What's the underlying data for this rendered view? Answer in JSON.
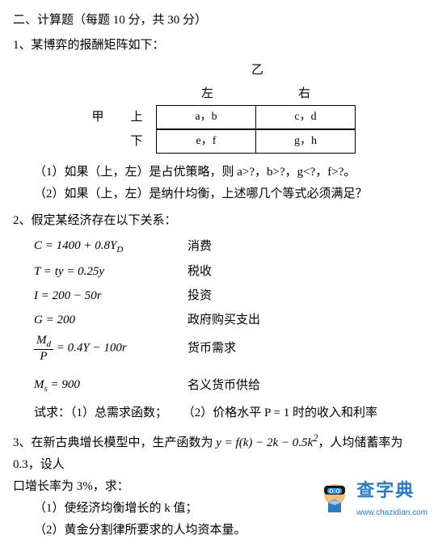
{
  "section_title": "二、计算题（每题 10 分，共 30 分）",
  "q1": {
    "stem": "1、某博弈的报酬矩阵如下：",
    "colplayer": "乙",
    "rowplayer": "甲",
    "col_left": "左",
    "col_right": "右",
    "row_top": "上",
    "row_bottom": "下",
    "cell_tl": "a，b",
    "cell_tr": "c，d",
    "cell_bl": "e，f",
    "cell_br": "g，h",
    "sub1": "（1）如果（上，左）是占优策略，则 a>?，b>?，g<?，f>?。",
    "sub2": "（2）如果（上，左）是纳什均衡，上述哪几个等式必须满足？"
  },
  "q2": {
    "stem": "2、假定某经济存在以下关系：",
    "rows": [
      {
        "eqhtml": "C = 1400 + 0.8Y<span class='sub'>D</span>",
        "label": "消费"
      },
      {
        "eqhtml": "T = ty = 0.25y",
        "label": "税收"
      },
      {
        "eqhtml": "I = 200 − 50r",
        "label": "投资"
      },
      {
        "eqhtml": "G = 200",
        "label": "政府购买支出"
      },
      {
        "eqhtml": "<span class='frac'><span class='num'>M<span class=\"sub\">d</span></span><span class='den'>P</span></span> = 0.4Y − 100r",
        "label": "货币需求"
      },
      {
        "eqhtml": "M<span class='sub'>s</span> = 900",
        "label": "名义货币供给"
      }
    ],
    "ask_prefix": "试求：（1）总需求函数；",
    "ask_part2": "（2）价格水平 P = 1 时的收入和利率"
  },
  "q3": {
    "line1_a": "3、在新古典增长模型中，生产函数为 ",
    "line1_fn": "y = f(k) − 2k − 0.5k",
    "line1_exp": "2",
    "line1_b": "，人均储蓄率为 0.3，设人",
    "line2": "口增长率为 3%，求：",
    "sub1": "（1）使经济均衡增长的 k 值；",
    "sub2": "（2）黄金分割律所要求的人均资本量。"
  },
  "watermark": {
    "title": "查字典",
    "url": "www.chazidian.com"
  }
}
